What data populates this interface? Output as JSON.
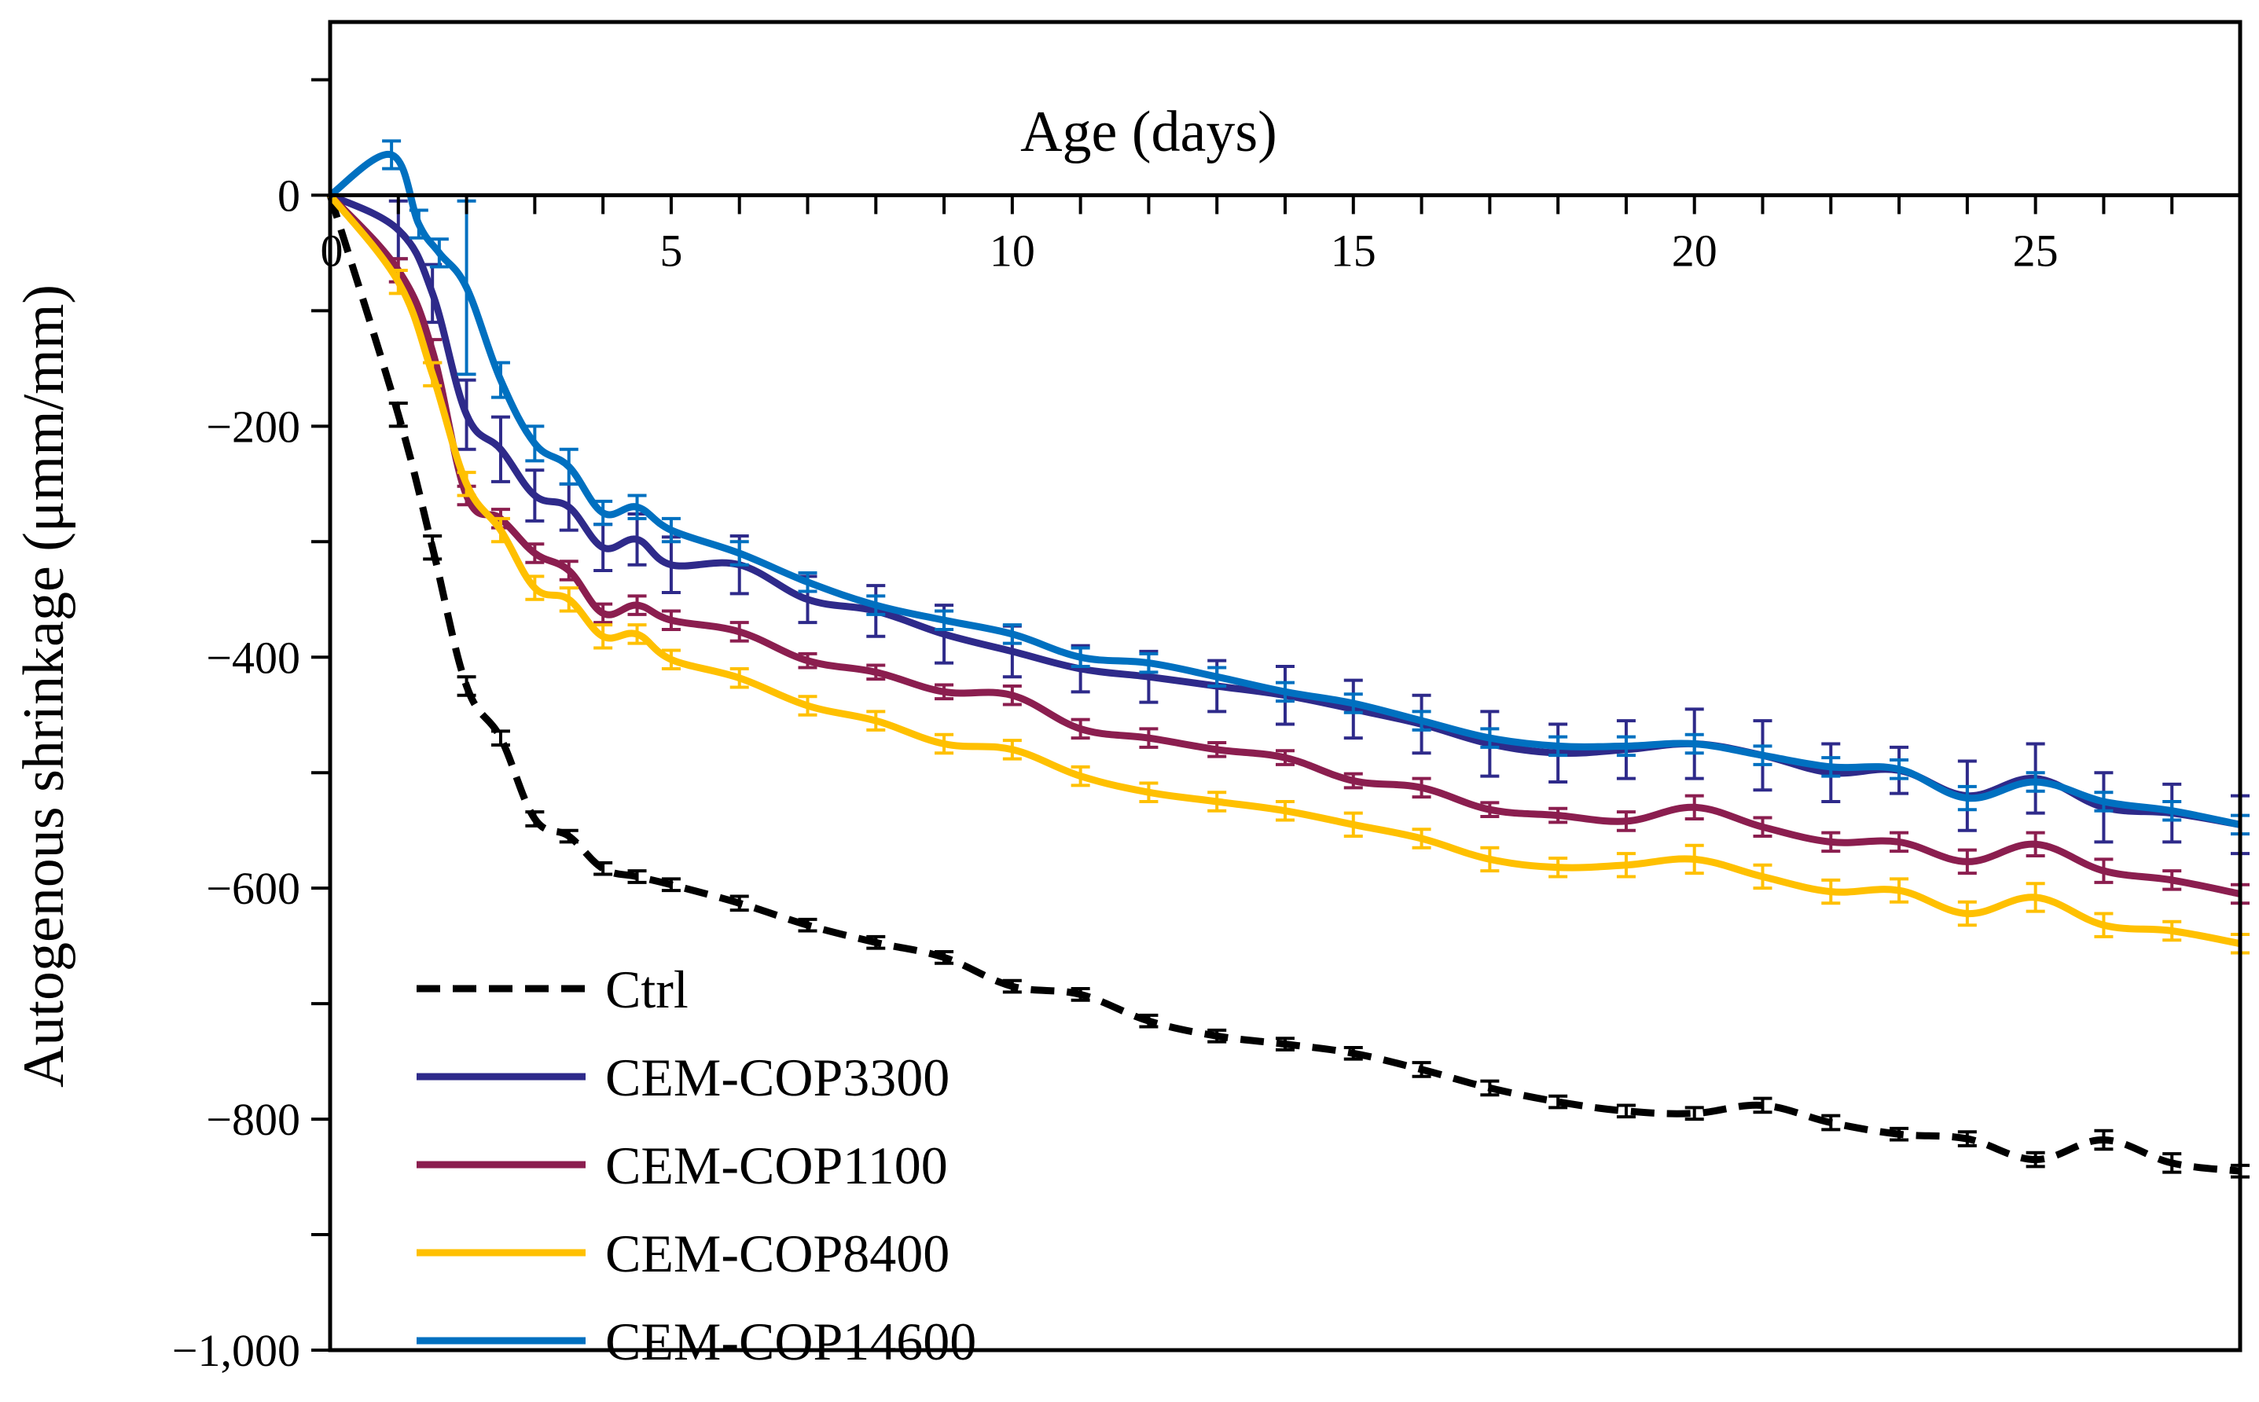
{
  "chart_data": {
    "type": "line",
    "title": "",
    "xlabel": "Age (days)",
    "ylabel": "Autogenous shrinkage (μmm/mm)",
    "xlim": [
      0,
      28
    ],
    "ylim": [
      -1000,
      150
    ],
    "xticks": [
      5,
      10,
      15,
      20,
      25
    ],
    "xtick_labels": [
      "5",
      "10",
      "15",
      "20",
      "25"
    ],
    "yticks": [
      0,
      -200,
      -400,
      -600,
      -800,
      -1000
    ],
    "ytick_labels": [
      "0",
      "−200",
      "−400",
      "−600",
      "−800",
      "−1,000"
    ],
    "x_origin_label": "0",
    "grid": false,
    "legend_position": "bottom-left",
    "series": [
      {
        "name": "Ctrl",
        "color": "#000000",
        "dashed": true,
        "x": [
          0,
          1,
          1.5,
          2,
          2.5,
          3,
          3.5,
          4,
          4.5,
          5,
          6,
          7,
          8,
          9,
          10,
          11,
          12,
          13,
          14,
          15,
          16,
          17,
          18,
          19,
          20,
          21,
          22,
          23,
          24,
          25,
          26,
          27,
          28
        ],
        "y": [
          0,
          -190,
          -305,
          -425,
          -470,
          -540,
          -555,
          -583,
          -590,
          -597,
          -613,
          -632,
          -647,
          -660,
          -685,
          -692,
          -715,
          -728,
          -735,
          -743,
          -757,
          -773,
          -785,
          -793,
          -795,
          -788,
          -803,
          -813,
          -817,
          -835,
          -818,
          -838,
          -845
        ],
        "err": [
          3,
          10,
          10,
          8,
          6,
          6,
          5,
          5,
          5,
          5,
          6,
          5,
          5,
          5,
          5,
          5,
          5,
          5,
          5,
          5,
          6,
          6,
          5,
          5,
          5,
          6,
          6,
          5,
          6,
          6,
          8,
          8,
          5
        ]
      },
      {
        "name": "CEM-COP3300",
        "color": "#2e2a8a",
        "dashed": false,
        "x": [
          0,
          1,
          1.5,
          2,
          2.5,
          3,
          3.5,
          4,
          4.5,
          5,
          6,
          7,
          8,
          9,
          10,
          11,
          12,
          13,
          14,
          15,
          16,
          17,
          18,
          19,
          20,
          21,
          22,
          23,
          24,
          25,
          26,
          27,
          28
        ],
        "y": [
          0,
          -30,
          -85,
          -190,
          -220,
          -260,
          -270,
          -305,
          -298,
          -320,
          -320,
          -350,
          -360,
          -380,
          -395,
          -410,
          -417,
          -425,
          -433,
          -445,
          -458,
          -475,
          -483,
          -480,
          -475,
          -485,
          -500,
          -498,
          -520,
          -505,
          -530,
          -535,
          -545
        ],
        "err": [
          3,
          25,
          25,
          30,
          28,
          22,
          20,
          20,
          22,
          24,
          25,
          20,
          22,
          25,
          22,
          20,
          22,
          22,
          25,
          25,
          25,
          28,
          25,
          25,
          30,
          30,
          25,
          20,
          30,
          30,
          30,
          25,
          25
        ]
      },
      {
        "name": "CEM-COP1100",
        "color": "#8b1e4f",
        "dashed": false,
        "x": [
          0,
          1,
          1.5,
          2,
          2.5,
          3,
          3.5,
          4,
          4.5,
          5,
          6,
          7,
          8,
          9,
          10,
          11,
          12,
          13,
          14,
          15,
          16,
          17,
          18,
          19,
          20,
          21,
          22,
          23,
          24,
          25,
          26,
          27,
          28
        ],
        "y": [
          0,
          -65,
          -135,
          -260,
          -280,
          -310,
          -325,
          -362,
          -355,
          -368,
          -378,
          -403,
          -413,
          -430,
          -433,
          -462,
          -470,
          -480,
          -487,
          -507,
          -513,
          -532,
          -537,
          -542,
          -530,
          -547,
          -560,
          -560,
          -577,
          -562,
          -585,
          -593,
          -605
        ],
        "err": [
          3,
          10,
          10,
          8,
          8,
          8,
          8,
          8,
          8,
          8,
          8,
          6,
          6,
          6,
          8,
          8,
          8,
          6,
          6,
          6,
          8,
          6,
          6,
          8,
          10,
          8,
          8,
          8,
          10,
          10,
          10,
          8,
          8
        ]
      },
      {
        "name": "CEM-COP8400",
        "color": "#ffc000",
        "dashed": false,
        "x": [
          0,
          1,
          1.5,
          2,
          2.5,
          3,
          3.5,
          4,
          4.5,
          5,
          6,
          7,
          8,
          9,
          10,
          11,
          12,
          13,
          14,
          15,
          16,
          17,
          18,
          19,
          20,
          21,
          22,
          23,
          24,
          25,
          26,
          27,
          28
        ],
        "y": [
          0,
          -75,
          -155,
          -250,
          -290,
          -340,
          -350,
          -382,
          -380,
          -402,
          -418,
          -442,
          -455,
          -475,
          -480,
          -503,
          -517,
          -525,
          -533,
          -545,
          -557,
          -575,
          -582,
          -580,
          -575,
          -590,
          -603,
          -602,
          -622,
          -608,
          -632,
          -637,
          -648
        ],
        "err": [
          3,
          10,
          10,
          10,
          10,
          10,
          10,
          10,
          8,
          8,
          8,
          8,
          8,
          8,
          8,
          8,
          8,
          8,
          8,
          10,
          8,
          10,
          8,
          10,
          12,
          10,
          10,
          10,
          10,
          12,
          10,
          8,
          8
        ]
      },
      {
        "name": "CEM-COP14600",
        "color": "#0070c0",
        "dashed": false,
        "x": [
          0,
          0.9,
          1.3,
          1.6,
          2,
          2.5,
          3,
          3.5,
          4,
          4.5,
          5,
          6,
          7,
          8,
          9,
          10,
          11,
          12,
          13,
          14,
          15,
          16,
          17,
          18,
          19,
          20,
          21,
          22,
          23,
          24,
          25,
          26,
          27,
          28
        ],
        "y": [
          0,
          35,
          -25,
          -50,
          -80,
          -160,
          -215,
          -235,
          -275,
          -270,
          -290,
          -310,
          -335,
          -355,
          -368,
          -380,
          -400,
          -405,
          -417,
          -430,
          -440,
          -455,
          -470,
          -477,
          -477,
          -475,
          -485,
          -495,
          -497,
          -522,
          -508,
          -525,
          -533,
          -545
        ],
        "err": [
          3,
          12,
          12,
          12,
          75,
          15,
          15,
          15,
          10,
          10,
          10,
          10,
          8,
          8,
          8,
          8,
          8,
          8,
          8,
          8,
          8,
          8,
          8,
          8,
          8,
          8,
          8,
          8,
          8,
          10,
          8,
          8,
          8,
          8
        ]
      }
    ]
  }
}
